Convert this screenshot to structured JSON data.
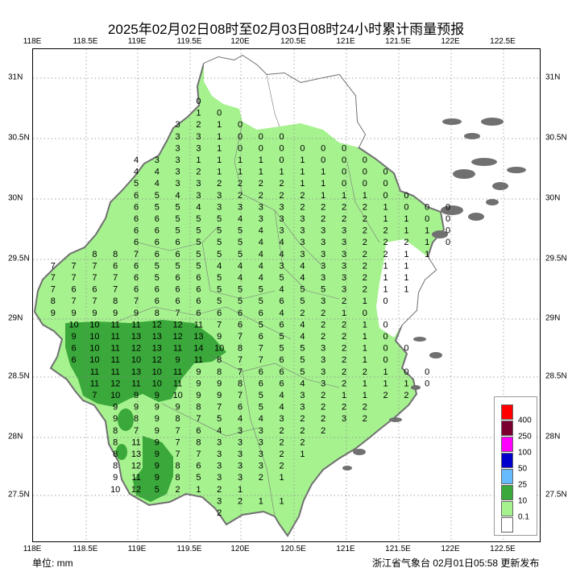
{
  "title": "2025年02月02日08时至02月03日08时24小时累计雨量预报",
  "axes": {
    "lon_labels": [
      "118E",
      "118.5E",
      "119E",
      "119.5E",
      "120E",
      "120.5E",
      "121E",
      "121.5E",
      "122E",
      "122.5E"
    ],
    "lat_labels": [
      "31N",
      "30.5N",
      "30N",
      "29.5N",
      "29N",
      "28.5N",
      "28N",
      "27.5N"
    ]
  },
  "legend": {
    "labels": [
      "400",
      "250",
      "100",
      "50",
      "25",
      "10",
      "0.1"
    ],
    "colors": [
      "#ff0000",
      "#7a0030",
      "#ff00ff",
      "#0000cc",
      "#66bbff",
      "#3aa83a",
      "#a6f28f",
      "#ffffff"
    ]
  },
  "colors": {
    "land": "#ffffff",
    "border": "#707070",
    "level_01": "#a6f28f",
    "level_10": "#3aa83a",
    "grid": "#888888"
  },
  "rows": [
    [
      "0"
    ],
    [
      "1",
      "0"
    ],
    [
      "3",
      "2",
      "1",
      "0"
    ],
    [
      "3",
      "3",
      "1",
      "0",
      "0",
      "0"
    ],
    [
      "3",
      "3",
      "1",
      "0",
      "0",
      "0",
      "0",
      "0",
      "0"
    ],
    [
      "4",
      "3",
      "3",
      "1",
      "1",
      "1",
      "1",
      "0",
      "1",
      "0",
      "0",
      "0"
    ],
    [
      "4",
      "4",
      "3",
      "2",
      "1",
      "1",
      "1",
      "1",
      "1",
      "1",
      "0",
      "0",
      "0"
    ],
    [
      "5",
      "4",
      "3",
      "3",
      "2",
      "2",
      "2",
      "2",
      "1",
      "1",
      "0",
      "0",
      "0"
    ],
    [
      "6",
      "5",
      "4",
      "3",
      "3",
      "2",
      "2",
      "2",
      "2",
      "1",
      "1",
      "1",
      "0",
      "0"
    ],
    [
      "6",
      "5",
      "5",
      "4",
      "3",
      "3",
      "3",
      "3",
      "2",
      "2",
      "2",
      "2",
      "1",
      "0",
      "0",
      "0"
    ],
    [
      "6",
      "6",
      "5",
      "5",
      "5",
      "4",
      "3",
      "3",
      "3",
      "2",
      "2",
      "2",
      "1",
      "1",
      "0",
      "0"
    ],
    [
      "6",
      "6",
      "5",
      "5",
      "5",
      "5",
      "4",
      "3",
      "3",
      "3",
      "3",
      "2",
      "2",
      "1",
      "1",
      "0"
    ],
    [
      "6",
      "6",
      "6",
      "5",
      "5",
      "5",
      "4",
      "4",
      "3",
      "3",
      "3",
      "2",
      "2",
      "2",
      "1",
      "0"
    ],
    [
      "8",
      "8",
      "7",
      "6",
      "6",
      "5",
      "5",
      "5",
      "4",
      "4",
      "3",
      "3",
      "3",
      "2",
      "2",
      "1",
      "1"
    ],
    [
      "7",
      "7",
      "7",
      "6",
      "6",
      "5",
      "5",
      "5",
      "4",
      "4",
      "4",
      "3",
      "4",
      "3",
      "3",
      "2",
      "1",
      "1"
    ],
    [
      "7",
      "7",
      "7",
      "7",
      "6",
      "5",
      "6",
      "6",
      "5",
      "4",
      "4",
      "5",
      "4",
      "3",
      "3",
      "2",
      "1",
      "1"
    ],
    [
      "7",
      "6",
      "6",
      "7",
      "6",
      "6",
      "6",
      "6",
      "5",
      "5",
      "5",
      "4",
      "5",
      "5",
      "3",
      "2",
      "1",
      "1"
    ],
    [
      "8",
      "7",
      "7",
      "8",
      "7",
      "6",
      "6",
      "6",
      "5",
      "5",
      "5",
      "6",
      "5",
      "3",
      "2",
      "1",
      "0"
    ],
    [
      "9",
      "9",
      "9",
      "9",
      "9",
      "8",
      "7",
      "6",
      "6",
      "6",
      "6",
      "4",
      "2",
      "2",
      "1",
      "0"
    ],
    [
      "10",
      "10",
      "11",
      "11",
      "12",
      "12",
      "11",
      "7",
      "6",
      "5",
      "6",
      "4",
      "2",
      "2",
      "1",
      "0"
    ],
    [
      "9",
      "10",
      "11",
      "13",
      "13",
      "12",
      "13",
      "9",
      "7",
      "6",
      "5",
      "4",
      "2",
      "2",
      "1",
      "0"
    ],
    [
      "6",
      "10",
      "11",
      "12",
      "13",
      "11",
      "14",
      "10",
      "8",
      "7",
      "5",
      "5",
      "3",
      "2",
      "1",
      "0",
      "0"
    ],
    [
      "6",
      "10",
      "11",
      "10",
      "12",
      "9",
      "11",
      "8",
      "7",
      "7",
      "6",
      "5",
      "3",
      "2",
      "1",
      "0"
    ],
    [
      "11",
      "11",
      "13",
      "10",
      "11",
      "9",
      "8",
      "7",
      "6",
      "6",
      "5",
      "3",
      "2",
      "2",
      "1",
      "0",
      "0"
    ],
    [
      "11",
      "12",
      "11",
      "10",
      "11",
      "9",
      "9",
      "8",
      "6",
      "6",
      "4",
      "3",
      "2",
      "1",
      "1",
      "1",
      "0"
    ],
    [
      "7",
      "10",
      "9",
      "9",
      "10",
      "9",
      "9",
      "7",
      "5",
      "4",
      "3",
      "2",
      "1",
      "1",
      "2",
      "2"
    ],
    [
      "9",
      "9",
      "9",
      "9",
      "8",
      "7",
      "6",
      "5",
      "4",
      "3",
      "2",
      "2",
      "2"
    ],
    [
      "9",
      "8",
      "9",
      "8",
      "7",
      "5",
      "4",
      "4",
      "3",
      "2",
      "2",
      "3",
      "2"
    ],
    [
      "8",
      "7",
      "9",
      "7",
      "6",
      "4",
      "3",
      "3",
      "2",
      "2",
      "2"
    ],
    [
      "8",
      "11",
      "9",
      "7",
      "8",
      "3",
      "3",
      "3",
      "2",
      "2"
    ],
    [
      "8",
      "13",
      "9",
      "7",
      "7",
      "3",
      "3",
      "3",
      "2",
      "1"
    ],
    [
      "8",
      "12",
      "9",
      "8",
      "6",
      "3",
      "3",
      "3",
      "2"
    ],
    [
      "9",
      "11",
      "9",
      "8",
      "5",
      "3",
      "3",
      "2",
      "1"
    ],
    [
      "10",
      "12",
      "5",
      "2",
      "1",
      "2",
      "1"
    ],
    [
      "3",
      "2",
      "1",
      "1"
    ],
    [
      "2"
    ]
  ],
  "footer": {
    "unit": "单位: mm",
    "issuer": "浙江省气象台 02月01日05:58 更新发布"
  }
}
